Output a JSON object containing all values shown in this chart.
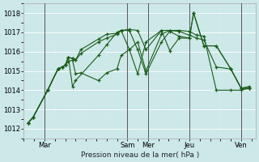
{
  "xlabel": "Pression niveau de la mer( hPa )",
  "background_color": "#cce8e8",
  "line_color": "#1a5c1a",
  "ylim": [
    1011.5,
    1018.5
  ],
  "yticks": [
    1012,
    1013,
    1014,
    1015,
    1016,
    1017,
    1018
  ],
  "xtick_labels": [
    "Mar",
    "Sam",
    "Mer",
    "Jeu",
    "Ven"
  ],
  "xtick_positions": [
    0,
    4,
    5,
    7,
    9.5
  ],
  "vline_positions": [
    0,
    4,
    5,
    7,
    9.5
  ],
  "lines": [
    {
      "x": [
        -0.8,
        -0.55,
        0.15,
        0.65,
        0.85,
        1.0,
        1.15,
        1.35,
        1.5,
        1.75,
        2.6,
        3.0,
        3.5,
        3.7,
        4.1,
        4.5,
        4.9,
        5.65,
        6.05,
        6.5,
        7.0,
        7.35,
        7.7,
        8.3,
        9.0,
        9.5,
        9.9
      ],
      "y": [
        1012.3,
        1012.6,
        1014.0,
        1015.1,
        1015.2,
        1015.3,
        1015.5,
        1015.55,
        1014.85,
        1014.9,
        1014.5,
        1014.9,
        1015.1,
        1015.8,
        1016.1,
        1016.5,
        1015.0,
        1016.9,
        1017.1,
        1017.1,
        1017.05,
        1016.85,
        1016.8,
        1014.0,
        1014.0,
        1014.0,
        1014.1
      ]
    },
    {
      "x": [
        -0.8,
        -0.55,
        0.15,
        0.65,
        0.85,
        1.0,
        1.15,
        1.35,
        1.5,
        1.75,
        2.6,
        3.0,
        3.5,
        3.7,
        4.1,
        4.5,
        4.9,
        5.65,
        6.05,
        6.5,
        7.0,
        7.35,
        7.7,
        8.3,
        9.0,
        9.5,
        9.9
      ],
      "y": [
        1012.3,
        1012.6,
        1014.0,
        1015.1,
        1015.2,
        1015.3,
        1015.7,
        1015.65,
        1015.55,
        1015.9,
        1016.5,
        1016.7,
        1016.9,
        1017.1,
        1017.15,
        1017.1,
        1016.1,
        1017.1,
        1017.1,
        1017.05,
        1016.85,
        1016.7,
        1016.6,
        1015.2,
        1015.1,
        1014.1,
        1014.1
      ]
    },
    {
      "x": [
        -0.8,
        -0.55,
        0.15,
        0.65,
        0.85,
        1.0,
        1.15,
        1.35,
        1.5,
        1.75,
        2.6,
        3.0,
        3.5,
        3.7,
        4.1,
        4.5,
        4.9,
        5.65,
        6.05,
        6.5,
        7.0,
        7.2,
        7.7,
        8.3,
        9.0,
        9.5,
        9.9
      ],
      "y": [
        1012.3,
        1012.6,
        1014.0,
        1015.1,
        1015.2,
        1015.3,
        1015.7,
        1015.65,
        1015.55,
        1016.1,
        1016.65,
        1016.9,
        1016.95,
        1017.1,
        1016.1,
        1014.85,
        1016.5,
        1017.1,
        1016.05,
        1016.7,
        1016.7,
        1018.0,
        1016.3,
        1016.3,
        1015.1,
        1014.1,
        1014.2
      ]
    },
    {
      "x": [
        -0.8,
        -0.55,
        0.15,
        0.65,
        0.85,
        1.0,
        1.15,
        1.35,
        1.5,
        2.6,
        3.0,
        3.5,
        3.7,
        4.1,
        4.5,
        4.9,
        5.65,
        6.05,
        6.5,
        7.0,
        7.2,
        7.7,
        8.3,
        9.0,
        9.5,
        9.9
      ],
      "y": [
        1012.3,
        1012.6,
        1014.0,
        1015.1,
        1015.2,
        1015.3,
        1015.7,
        1014.2,
        1014.5,
        1015.8,
        1016.35,
        1017.0,
        1017.1,
        1017.1,
        1016.1,
        1014.85,
        1016.5,
        1017.05,
        1016.8,
        1016.7,
        1018.0,
        1016.3,
        1016.3,
        1015.1,
        1014.1,
        1014.1
      ]
    }
  ],
  "vlines_x": [
    0.0,
    4.0,
    5.0,
    7.0,
    9.5
  ]
}
